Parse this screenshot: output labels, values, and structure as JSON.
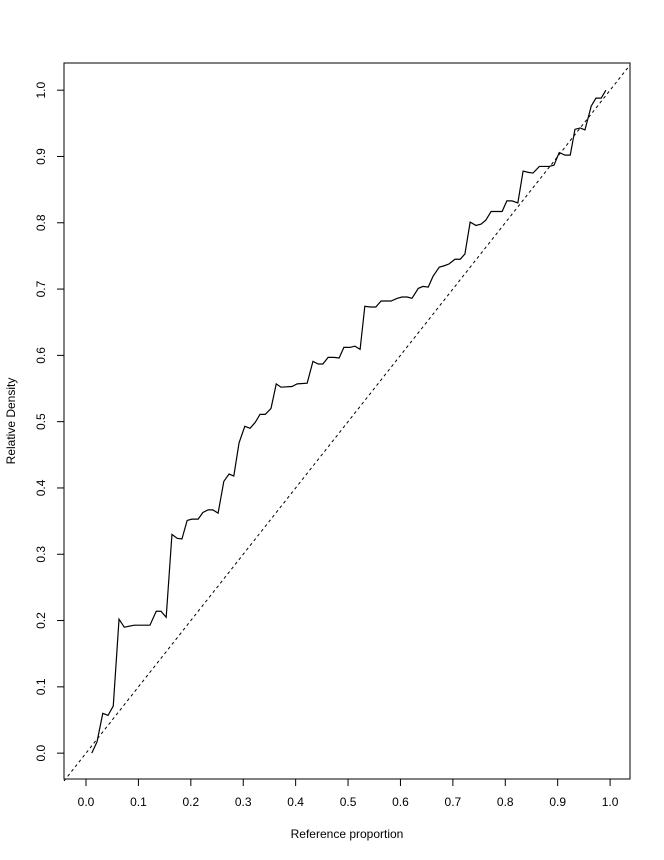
{
  "chart_data": {
    "type": "line",
    "x_label": "Reference proportion",
    "y_label": "Relative Density",
    "xlim": [
      -0.042,
      1.038
    ],
    "ylim": [
      -0.039,
      1.041
    ],
    "xticks": [
      {
        "value": 0,
        "label": "0.0"
      },
      {
        "value": 0.1,
        "label": "0.1"
      },
      {
        "value": 0.2,
        "label": "0.2"
      },
      {
        "value": 0.3,
        "label": "0.3"
      },
      {
        "value": 0.4,
        "label": "0.4"
      },
      {
        "value": 0.5,
        "label": "0.5"
      },
      {
        "value": 0.6,
        "label": "0.6"
      },
      {
        "value": 0.7,
        "label": "0.7"
      },
      {
        "value": 0.8,
        "label": "0.8"
      },
      {
        "value": 0.9,
        "label": "0.9"
      },
      {
        "value": 1,
        "label": "1.0"
      }
    ],
    "yticks": [
      {
        "value": 0,
        "label": "0.0"
      },
      {
        "value": 0.1,
        "label": "0.1"
      },
      {
        "value": 0.2,
        "label": "0.2"
      },
      {
        "value": 0.3,
        "label": "0.3"
      },
      {
        "value": 0.4,
        "label": "0.4"
      },
      {
        "value": 0.5,
        "label": "0.5"
      },
      {
        "value": 0.6,
        "label": "0.6"
      },
      {
        "value": 0.7,
        "label": "0.7"
      },
      {
        "value": 0.8,
        "label": "0.8"
      },
      {
        "value": 0.9,
        "label": "0.9"
      },
      {
        "value": 1,
        "label": "1.0"
      }
    ],
    "color": "#000000",
    "reference_line": {
      "slope": 1,
      "intercept": 0,
      "color": "#000000",
      "dashed": true
    },
    "x": [
      0.011,
      0.021,
      0.032,
      0.042,
      0.052,
      0.063,
      0.073,
      0.092,
      0.122,
      0.134,
      0.143,
      0.153,
      0.164,
      0.174,
      0.183,
      0.193,
      0.202,
      0.214,
      0.223,
      0.233,
      0.242,
      0.252,
      0.263,
      0.273,
      0.282,
      0.292,
      0.303,
      0.313,
      0.323,
      0.332,
      0.342,
      0.353,
      0.363,
      0.372,
      0.393,
      0.403,
      0.422,
      0.433,
      0.443,
      0.452,
      0.462,
      0.473,
      0.483,
      0.492,
      0.504,
      0.513,
      0.523,
      0.532,
      0.542,
      0.553,
      0.563,
      0.582,
      0.594,
      0.603,
      0.613,
      0.622,
      0.634,
      0.643,
      0.653,
      0.662,
      0.674,
      0.683,
      0.693,
      0.704,
      0.714,
      0.723,
      0.733,
      0.744,
      0.754,
      0.763,
      0.773,
      0.784,
      0.794,
      0.803,
      0.813,
      0.824,
      0.834,
      0.844,
      0.853,
      0.865,
      0.884,
      0.893,
      0.903,
      0.914,
      0.924,
      0.933,
      0.943,
      0.952,
      0.964,
      0.973,
      0.983,
      0.992
    ],
    "values": [
      0.0,
      0.017,
      0.06,
      0.057,
      0.071,
      0.202,
      0.19,
      0.193,
      0.193,
      0.214,
      0.214,
      0.205,
      0.33,
      0.324,
      0.323,
      0.351,
      0.353,
      0.353,
      0.363,
      0.367,
      0.367,
      0.362,
      0.41,
      0.421,
      0.418,
      0.468,
      0.493,
      0.49,
      0.499,
      0.511,
      0.511,
      0.52,
      0.557,
      0.552,
      0.553,
      0.557,
      0.558,
      0.591,
      0.587,
      0.587,
      0.597,
      0.597,
      0.596,
      0.612,
      0.612,
      0.614,
      0.609,
      0.674,
      0.673,
      0.673,
      0.682,
      0.682,
      0.686,
      0.688,
      0.688,
      0.686,
      0.701,
      0.704,
      0.703,
      0.719,
      0.733,
      0.735,
      0.738,
      0.745,
      0.745,
      0.753,
      0.801,
      0.796,
      0.798,
      0.804,
      0.817,
      0.817,
      0.817,
      0.833,
      0.833,
      0.83,
      0.878,
      0.876,
      0.875,
      0.885,
      0.885,
      0.887,
      0.906,
      0.902,
      0.902,
      0.941,
      0.943,
      0.94,
      0.976,
      0.988,
      0.988,
      1.0
    ]
  }
}
